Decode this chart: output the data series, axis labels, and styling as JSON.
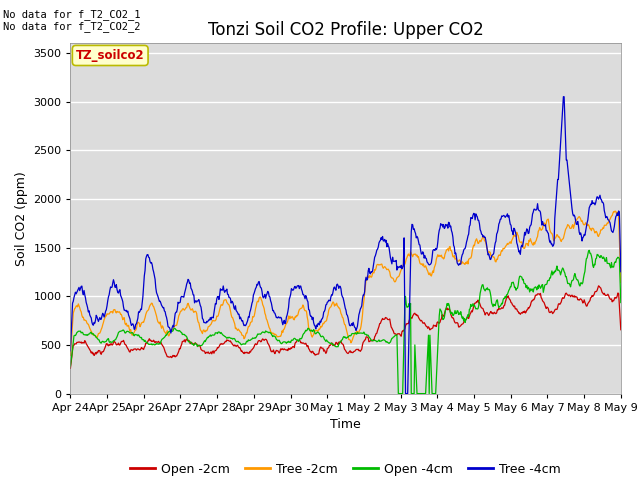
{
  "title": "Tonzi Soil CO2 Profile: Upper CO2",
  "xlabel": "Time",
  "ylabel": "Soil CO2 (ppm)",
  "ylim": [
    0,
    3600
  ],
  "yticks": [
    0,
    500,
    1000,
    1500,
    2000,
    2500,
    3000,
    3500
  ],
  "bg_color": "#dcdcdc",
  "no_data_text": [
    "No data for f_T2_CO2_1",
    "No data for f_T2_CO2_2"
  ],
  "legend_label_box": "TZ_soilco2",
  "legend_entries": [
    "Open -2cm",
    "Tree -2cm",
    "Open -4cm",
    "Tree -4cm"
  ],
  "line_colors": [
    "#cc0000",
    "#ff9900",
    "#00bb00",
    "#0000cc"
  ],
  "xtick_labels": [
    "Apr 24",
    "Apr 25",
    "Apr 26",
    "Apr 27",
    "Apr 28",
    "Apr 29",
    "Apr 30",
    "May 1",
    "May 2",
    "May 3",
    "May 4",
    "May 5",
    "May 6",
    "May 7",
    "May 8",
    "May 9"
  ],
  "title_fontsize": 12,
  "axis_label_fontsize": 9,
  "tick_fontsize": 8,
  "legend_fontsize": 9
}
